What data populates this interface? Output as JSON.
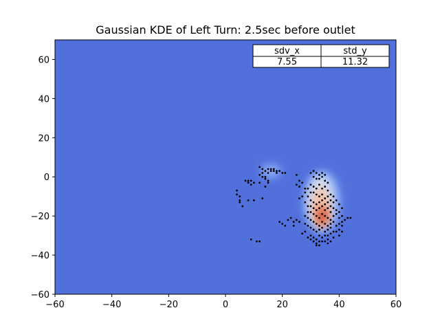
{
  "chart_data": {
    "type": "heatmap",
    "title": "Gaussian KDE of Left Turn: 2.5sec before outlet",
    "xlabel": "",
    "ylabel": "",
    "xlim": [
      -60,
      60
    ],
    "ylim": [
      -60,
      70
    ],
    "xticks": [
      -60,
      -40,
      -20,
      0,
      20,
      40,
      60
    ],
    "yticks": [
      -60,
      -40,
      -20,
      0,
      20,
      40,
      60
    ],
    "xtick_labels": [
      "−60",
      "−40",
      "−20",
      "0",
      "20",
      "40",
      "60"
    ],
    "ytick_labels": [
      "−60",
      "−40",
      "−20",
      "0",
      "20",
      "40",
      "60"
    ],
    "background_color": "#5170DC",
    "colormap": "coolwarm",
    "grid": false,
    "table": {
      "placement": "top-right",
      "headers": [
        "sdv_x",
        "std_y"
      ],
      "values": [
        "7.55",
        "11.32"
      ]
    },
    "density_blobs": [
      {
        "cx": 16,
        "cy": 3,
        "sx": 3.5,
        "sy": 3.5,
        "level": 1
      },
      {
        "cx": 34,
        "cy": -13,
        "sx": 6.5,
        "sy": 16,
        "level": 1
      },
      {
        "cx": 33.5,
        "cy": -12,
        "sx": 4.5,
        "sy": 13,
        "level": 2
      },
      {
        "cx": 33.5,
        "cy": -15,
        "sx": 3.2,
        "sy": 10,
        "level": 3
      },
      {
        "cx": 34,
        "cy": -20,
        "sx": 2.5,
        "sy": 6,
        "level": 4
      },
      {
        "cx": 34,
        "cy": -20,
        "sx": 1.5,
        "sy": 3,
        "level": 5
      }
    ],
    "points": [
      [
        12,
        5
      ],
      [
        13,
        4
      ],
      [
        13,
        2
      ],
      [
        14,
        3
      ],
      [
        14,
        0
      ],
      [
        14,
        -1
      ],
      [
        15,
        4
      ],
      [
        15,
        2
      ],
      [
        15,
        -2
      ],
      [
        16,
        4
      ],
      [
        16,
        3
      ],
      [
        17,
        4
      ],
      [
        17,
        3
      ],
      [
        18,
        3
      ],
      [
        18,
        2
      ],
      [
        19,
        3
      ],
      [
        20,
        2
      ],
      [
        21,
        2
      ],
      [
        12,
        1
      ],
      [
        13,
        0
      ],
      [
        7,
        -2
      ],
      [
        8,
        -2
      ],
      [
        8,
        -3
      ],
      [
        9,
        -2
      ],
      [
        9,
        -4
      ],
      [
        10,
        -3
      ],
      [
        4,
        -7
      ],
      [
        4,
        -9
      ],
      [
        5,
        -10
      ],
      [
        5,
        -12
      ],
      [
        5,
        -13
      ],
      [
        6,
        -15
      ],
      [
        8,
        -12
      ],
      [
        10,
        -12
      ],
      [
        13,
        -11
      ],
      [
        12,
        -3
      ],
      [
        14,
        -5
      ],
      [
        15,
        -3
      ],
      [
        19,
        -23
      ],
      [
        20,
        -24
      ],
      [
        21,
        -25
      ],
      [
        22,
        -22
      ],
      [
        23,
        -21
      ],
      [
        24,
        -23
      ],
      [
        24,
        -25
      ],
      [
        25,
        -22
      ],
      [
        26,
        -23
      ],
      [
        27,
        -29
      ],
      [
        28,
        -28
      ],
      [
        29,
        -31
      ],
      [
        30,
        -32
      ],
      [
        9,
        -32
      ],
      [
        11,
        -33
      ],
      [
        12,
        -33
      ],
      [
        25,
        1
      ],
      [
        26,
        -2
      ],
      [
        25,
        -4
      ],
      [
        26,
        -5
      ],
      [
        27,
        -3
      ],
      [
        28,
        -6
      ],
      [
        28,
        -8
      ],
      [
        27,
        -10
      ],
      [
        26,
        -11
      ],
      [
        28,
        -13
      ],
      [
        29,
        -15
      ],
      [
        30,
        2
      ],
      [
        31,
        3
      ],
      [
        32,
        2
      ],
      [
        33,
        1
      ],
      [
        34,
        2
      ],
      [
        35,
        1
      ],
      [
        31,
        0
      ],
      [
        32,
        -1
      ],
      [
        33,
        -1
      ],
      [
        34,
        0
      ],
      [
        35,
        -2
      ],
      [
        36,
        -3
      ],
      [
        30,
        -4
      ],
      [
        31,
        -5
      ],
      [
        32,
        -6
      ],
      [
        33,
        -4
      ],
      [
        34,
        -6
      ],
      [
        35,
        -5
      ],
      [
        36,
        -7
      ],
      [
        31,
        -8
      ],
      [
        32,
        -9
      ],
      [
        33,
        -10
      ],
      [
        34,
        -9
      ],
      [
        35,
        -11
      ],
      [
        36,
        -10
      ],
      [
        30,
        -12
      ],
      [
        31,
        -13
      ],
      [
        32,
        -14
      ],
      [
        33,
        -13
      ],
      [
        34,
        -12
      ],
      [
        35,
        -14
      ],
      [
        36,
        -13
      ],
      [
        37,
        -12
      ],
      [
        30,
        -15
      ],
      [
        31,
        -16
      ],
      [
        32,
        -17
      ],
      [
        33,
        -16
      ],
      [
        34,
        -15
      ],
      [
        35,
        -17
      ],
      [
        36,
        -16
      ],
      [
        37,
        -18
      ],
      [
        30,
        -18
      ],
      [
        31,
        -19
      ],
      [
        32,
        -20
      ],
      [
        33,
        -21
      ],
      [
        34,
        -19
      ],
      [
        35,
        -20
      ],
      [
        36,
        -21
      ],
      [
        37,
        -22
      ],
      [
        38,
        -20
      ],
      [
        39,
        -19
      ],
      [
        40,
        -21
      ],
      [
        30,
        -22
      ],
      [
        31,
        -23
      ],
      [
        32,
        -24
      ],
      [
        33,
        -25
      ],
      [
        34,
        -23
      ],
      [
        35,
        -24
      ],
      [
        36,
        -25
      ],
      [
        37,
        -24
      ],
      [
        38,
        -23
      ],
      [
        39,
        -25
      ],
      [
        40,
        -24
      ],
      [
        41,
        -23
      ],
      [
        30,
        -26
      ],
      [
        31,
        -27
      ],
      [
        32,
        -28
      ],
      [
        33,
        -27
      ],
      [
        34,
        -26
      ],
      [
        35,
        -28
      ],
      [
        36,
        -27
      ],
      [
        37,
        -26
      ],
      [
        38,
        -28
      ],
      [
        30,
        -30
      ],
      [
        31,
        -31
      ],
      [
        32,
        -32
      ],
      [
        33,
        -30
      ],
      [
        34,
        -31
      ],
      [
        35,
        -30
      ],
      [
        36,
        -32
      ],
      [
        31,
        -33
      ],
      [
        32,
        -34
      ],
      [
        33,
        -33
      ],
      [
        29,
        -25
      ],
      [
        28,
        -24
      ],
      [
        29,
        -21
      ],
      [
        28,
        -20
      ],
      [
        29,
        -18
      ],
      [
        29,
        -10
      ],
      [
        29,
        -6
      ],
      [
        30,
        -8
      ],
      [
        37,
        -15
      ],
      [
        38,
        -16
      ],
      [
        39,
        -17
      ],
      [
        38,
        -13
      ],
      [
        37,
        -9
      ],
      [
        38,
        -10
      ],
      [
        39,
        -12
      ],
      [
        40,
        -14
      ],
      [
        41,
        -16
      ],
      [
        40,
        -18
      ],
      [
        41,
        -20
      ],
      [
        42,
        -22
      ],
      [
        43,
        -21
      ],
      [
        44,
        -21
      ],
      [
        41,
        -25
      ],
      [
        40,
        -27
      ],
      [
        39,
        -28
      ],
      [
        40,
        -30
      ],
      [
        41,
        -28
      ],
      [
        37,
        -29
      ],
      [
        36,
        -30
      ],
      [
        38,
        -31
      ],
      [
        36,
        -34
      ],
      [
        35,
        -33
      ],
      [
        34,
        -33
      ],
      [
        33,
        -35
      ],
      [
        32,
        -35
      ],
      [
        37,
        -33
      ]
    ]
  }
}
